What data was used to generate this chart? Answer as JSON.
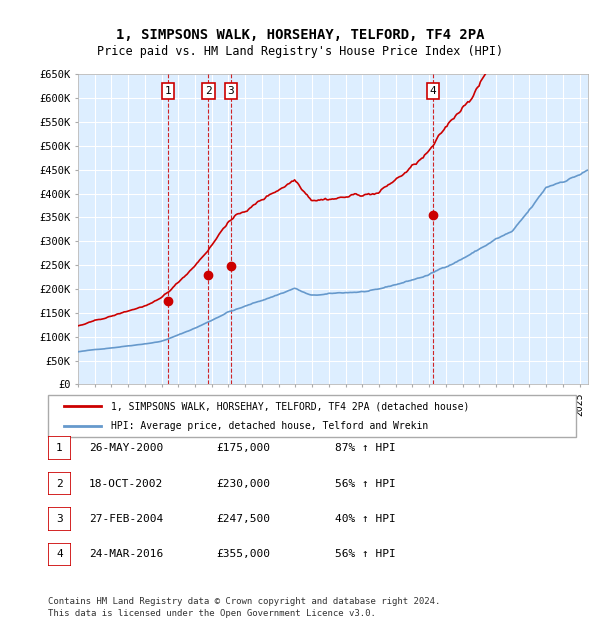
{
  "title": "1, SIMPSONS WALK, HORSEHAY, TELFORD, TF4 2PA",
  "subtitle": "Price paid vs. HM Land Registry's House Price Index (HPI)",
  "ylim": [
    0,
    650000
  ],
  "yticks": [
    0,
    50000,
    100000,
    150000,
    200000,
    250000,
    300000,
    350000,
    400000,
    450000,
    500000,
    550000,
    600000,
    650000
  ],
  "ytick_labels": [
    "£0",
    "£50K",
    "£100K",
    "£150K",
    "£200K",
    "£250K",
    "£300K",
    "£350K",
    "£400K",
    "£450K",
    "£500K",
    "£550K",
    "£600K",
    "£650K"
  ],
  "xlim_start": 1995.0,
  "xlim_end": 2025.5,
  "sale_events": [
    {
      "num": 1,
      "date": "26-MAY-2000",
      "year": 2000.4,
      "price": 175000,
      "pct": "87%",
      "dir": "↑"
    },
    {
      "num": 2,
      "date": "18-OCT-2002",
      "year": 2002.8,
      "price": 230000,
      "pct": "56%",
      "dir": "↑"
    },
    {
      "num": 3,
      "date": "27-FEB-2004",
      "year": 2004.15,
      "price": 247500,
      "pct": "40%",
      "dir": "↑"
    },
    {
      "num": 4,
      "date": "24-MAR-2016",
      "year": 2016.23,
      "price": 355000,
      "pct": "56%",
      "dir": "↑"
    }
  ],
  "legend_line1": "1, SIMPSONS WALK, HORSEHAY, TELFORD, TF4 2PA (detached house)",
  "legend_line2": "HPI: Average price, detached house, Telford and Wrekin",
  "footer1": "Contains HM Land Registry data © Crown copyright and database right 2024.",
  "footer2": "This data is licensed under the Open Government Licence v3.0.",
  "red_color": "#cc0000",
  "blue_color": "#6699cc",
  "bg_color": "#ddeeff",
  "grid_color": "#ffffff"
}
